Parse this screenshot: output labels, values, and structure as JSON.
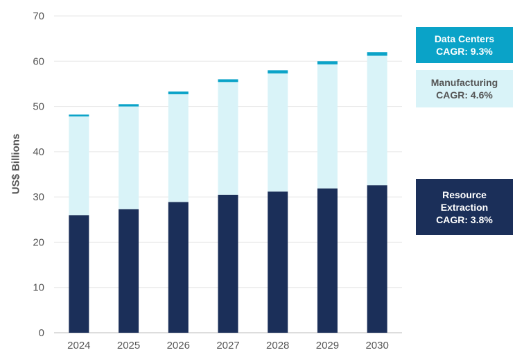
{
  "chart_data": {
    "type": "bar",
    "stacked": true,
    "title": "",
    "xlabel": "",
    "ylabel": "US$ Billions",
    "ylim": [
      0,
      70
    ],
    "yticks": [
      0,
      10,
      20,
      30,
      40,
      50,
      60,
      70
    ],
    "grid": true,
    "legend_placement": "right",
    "categories": [
      "2024",
      "2025",
      "2026",
      "2027",
      "2028",
      "2029",
      "2030"
    ],
    "series": [
      {
        "name": "Resource Extraction",
        "cagr": "CAGR: 3.8%",
        "color": "#1b2f59",
        "values": [
          26.0,
          27.3,
          28.9,
          30.5,
          31.2,
          31.9,
          32.6
        ]
      },
      {
        "name": "Manufacturing",
        "cagr": "CAGR: 4.6%",
        "color": "#d9f3f8",
        "values": [
          21.8,
          22.7,
          23.8,
          24.9,
          26.1,
          27.4,
          28.6
        ]
      },
      {
        "name": "Data Centers",
        "cagr": "CAGR: 9.3%",
        "color": "#0aa3c8",
        "values": [
          0.4,
          0.5,
          0.6,
          0.6,
          0.7,
          0.7,
          0.8
        ]
      }
    ]
  },
  "legend": {
    "data_centers": {
      "line1": "Data Centers",
      "line2": "CAGR: 9.3%"
    },
    "manufacturing": {
      "line1": "Manufacturing",
      "line2": "CAGR: 4.6%"
    },
    "resource": {
      "line1": "Resource",
      "line2": "Extraction",
      "line3": "CAGR: 3.8%"
    }
  }
}
